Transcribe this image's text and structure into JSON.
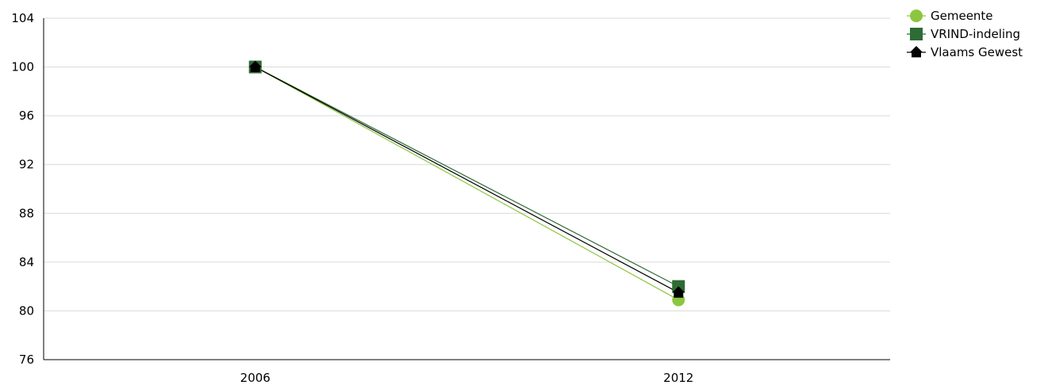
{
  "chart_data": {
    "type": "line",
    "title": "",
    "xlabel": "",
    "ylabel": "",
    "categories": [
      "2006",
      "2012"
    ],
    "ylim": [
      76,
      104
    ],
    "yticks": [
      76,
      80,
      84,
      88,
      92,
      96,
      100,
      104
    ],
    "grid": true,
    "legend_position": "top-right",
    "series": [
      {
        "name": "Gemeente",
        "values": [
          100,
          80.9
        ],
        "color": "#8cc63f",
        "marker": "circle"
      },
      {
        "name": "VRIND-indeling",
        "values": [
          100,
          82.0
        ],
        "color": "#2e6b35",
        "marker": "square"
      },
      {
        "name": "Vlaams Gewest",
        "values": [
          100,
          81.5
        ],
        "color": "#000000",
        "marker": "triangle"
      }
    ]
  }
}
